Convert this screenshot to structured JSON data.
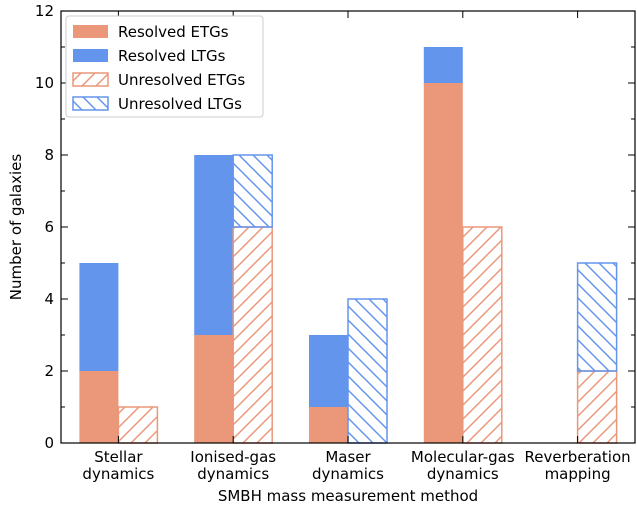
{
  "chart_data": {
    "type": "bar",
    "stacked": true,
    "xlabel": "SMBH mass measurement method",
    "ylabel": "Number of galaxies",
    "ylim": [
      0,
      12
    ],
    "yticks": [
      "0",
      "2",
      "4",
      "6",
      "8",
      "10",
      "12"
    ],
    "categories": [
      [
        "Stellar",
        "dynamics"
      ],
      [
        "Ionised-gas",
        "dynamics"
      ],
      [
        "Maser",
        "dynamics"
      ],
      [
        "Molecular-gas",
        "dynamics"
      ],
      [
        "Reverberation",
        "mapping"
      ]
    ],
    "resolved": {
      "etg": [
        2,
        3,
        1,
        10,
        0
      ],
      "ltg": [
        3,
        5,
        2,
        1,
        0
      ]
    },
    "unresolved": {
      "etg": [
        1,
        6,
        0,
        6,
        2
      ],
      "ltg": [
        0,
        2,
        4,
        0,
        3
      ]
    },
    "legend": {
      "placement": "top-left",
      "entries": [
        "Resolved ETGs",
        "Resolved LTGs",
        "Unresolved ETGs",
        "Unresolved LTGs"
      ]
    },
    "colors": {
      "etg": "#EB977A",
      "ltg": "#6495ED"
    },
    "hatches": {
      "etg": "forward-diagonal",
      "ltg": "back-diagonal"
    }
  }
}
